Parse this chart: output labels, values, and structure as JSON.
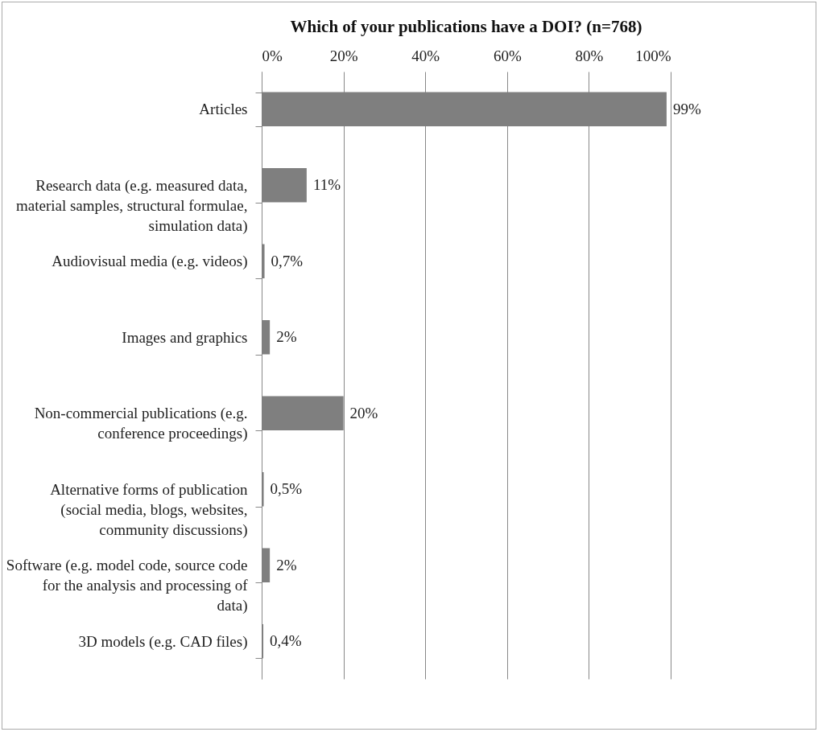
{
  "chart_data": {
    "type": "bar",
    "orientation": "horizontal",
    "title": "Which of your publications have a DOI? (n=768)",
    "categories": [
      "Articles",
      "Research data (e.g. measured data, material samples, structural formulae, simulation data)",
      "Audiovisual media (e.g. videos)",
      "Images and graphics",
      "Non-commercial publications (e.g. conference proceedings)",
      "Alternative forms of publication (social media, blogs, websites, community discussions)",
      "Software (e.g. model code, source code for the analysis and processing of data)",
      "3D models (e.g. CAD files)"
    ],
    "values": [
      99,
      11,
      0.7,
      2,
      20,
      0.5,
      2,
      0.4
    ],
    "value_labels": [
      "99%",
      "11%",
      "0,7%",
      "2%",
      "20%",
      "0,5%",
      "2%",
      "0,4%"
    ],
    "color": "#7f7f7f",
    "xlim": [
      0,
      100
    ],
    "xticks": [
      {
        "value": 0,
        "label": "0%"
      },
      {
        "value": 20,
        "label": "20%"
      },
      {
        "value": 40,
        "label": "40%"
      },
      {
        "value": 60,
        "label": "60%"
      },
      {
        "value": 80,
        "label": "80%"
      },
      {
        "value": 100,
        "label": "100%"
      }
    ],
    "grid": "x"
  }
}
